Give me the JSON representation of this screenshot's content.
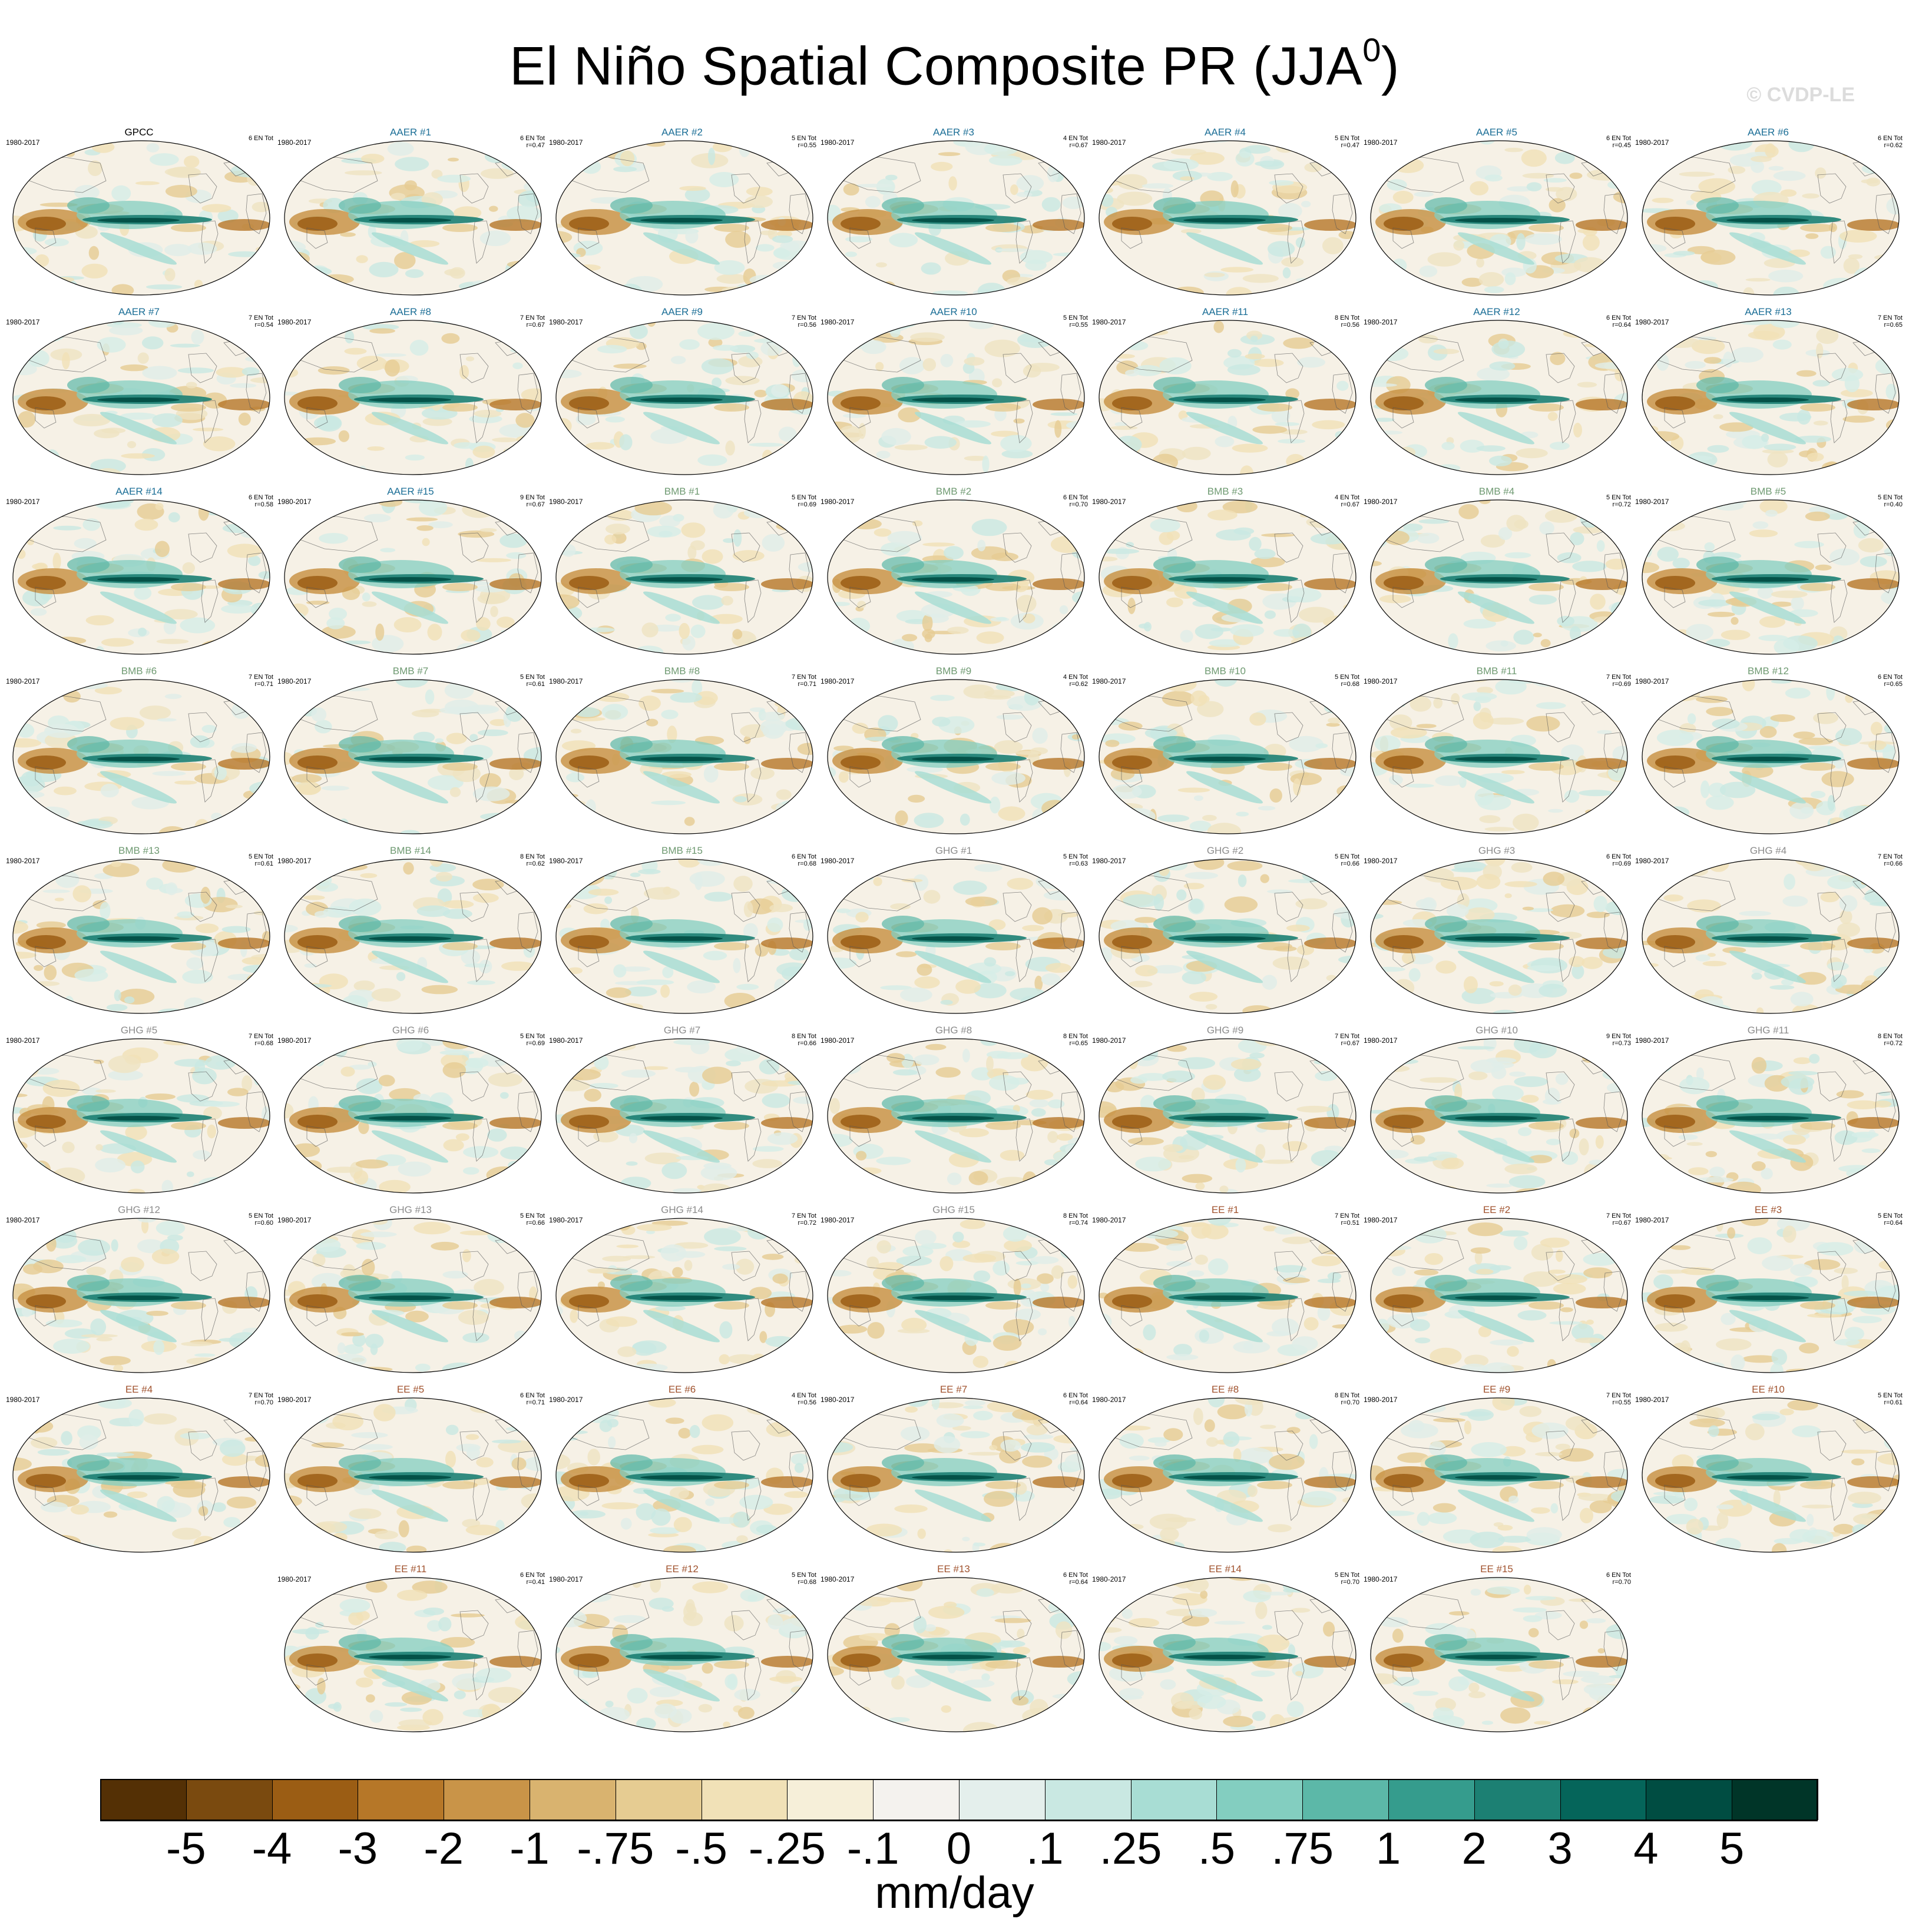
{
  "title": {
    "main": "El Niño Spatial Composite PR (JJA",
    "superscript": "0",
    "close": ")"
  },
  "copyright": "© CVDP-LE",
  "group_colors": {
    "GPCC": "#000000",
    "AAER": "#1b6e96",
    "BMB": "#6f9a72",
    "GHG": "#8c8c8c",
    "EE": "#a0522d"
  },
  "panels": [
    {
      "label": "GPCC",
      "group": "GPCC",
      "years": "1980-2017",
      "n_events": "6 EN Tot",
      "r": ""
    },
    {
      "label": "AAER #1",
      "group": "AAER",
      "years": "1980-2017",
      "n_events": "6 EN Tot",
      "r": "r=0.47"
    },
    {
      "label": "AAER #2",
      "group": "AAER",
      "years": "1980-2017",
      "n_events": "5 EN Tot",
      "r": "r=0.55"
    },
    {
      "label": "AAER #3",
      "group": "AAER",
      "years": "1980-2017",
      "n_events": "4 EN Tot",
      "r": "r=0.67"
    },
    {
      "label": "AAER #4",
      "group": "AAER",
      "years": "1980-2017",
      "n_events": "5 EN Tot",
      "r": "r=0.47"
    },
    {
      "label": "AAER #5",
      "group": "AAER",
      "years": "1980-2017",
      "n_events": "6 EN Tot",
      "r": "r=0.45"
    },
    {
      "label": "AAER #6",
      "group": "AAER",
      "years": "1980-2017",
      "n_events": "6 EN Tot",
      "r": "r=0.62"
    },
    {
      "label": "AAER #7",
      "group": "AAER",
      "years": "1980-2017",
      "n_events": "7 EN Tot",
      "r": "r=0.54"
    },
    {
      "label": "AAER #8",
      "group": "AAER",
      "years": "1980-2017",
      "n_events": "7 EN Tot",
      "r": "r=0.67"
    },
    {
      "label": "AAER #9",
      "group": "AAER",
      "years": "1980-2017",
      "n_events": "7 EN Tot",
      "r": "r=0.56"
    },
    {
      "label": "AAER #10",
      "group": "AAER",
      "years": "1980-2017",
      "n_events": "5 EN Tot",
      "r": "r=0.55"
    },
    {
      "label": "AAER #11",
      "group": "AAER",
      "years": "1980-2017",
      "n_events": "8 EN Tot",
      "r": "r=0.56"
    },
    {
      "label": "AAER #12",
      "group": "AAER",
      "years": "1980-2017",
      "n_events": "6 EN Tot",
      "r": "r=0.64"
    },
    {
      "label": "AAER #13",
      "group": "AAER",
      "years": "1980-2017",
      "n_events": "7 EN Tot",
      "r": "r=0.65"
    },
    {
      "label": "AAER #14",
      "group": "AAER",
      "years": "1980-2017",
      "n_events": "6 EN Tot",
      "r": "r=0.58"
    },
    {
      "label": "AAER #15",
      "group": "AAER",
      "years": "1980-2017",
      "n_events": "9 EN Tot",
      "r": "r=0.67"
    },
    {
      "label": "BMB #1",
      "group": "BMB",
      "years": "1980-2017",
      "n_events": "5 EN Tot",
      "r": "r=0.69"
    },
    {
      "label": "BMB #2",
      "group": "BMB",
      "years": "1980-2017",
      "n_events": "6 EN Tot",
      "r": "r=0.70"
    },
    {
      "label": "BMB #3",
      "group": "BMB",
      "years": "1980-2017",
      "n_events": "4 EN Tot",
      "r": "r=0.67"
    },
    {
      "label": "BMB #4",
      "group": "BMB",
      "years": "1980-2017",
      "n_events": "5 EN Tot",
      "r": "r=0.72"
    },
    {
      "label": "BMB #5",
      "group": "BMB",
      "years": "1980-2017",
      "n_events": "5 EN Tot",
      "r": "r=0.40"
    },
    {
      "label": "BMB #6",
      "group": "BMB",
      "years": "1980-2017",
      "n_events": "7 EN Tot",
      "r": "r=0.71"
    },
    {
      "label": "BMB #7",
      "group": "BMB",
      "years": "1980-2017",
      "n_events": "5 EN Tot",
      "r": "r=0.61"
    },
    {
      "label": "BMB #8",
      "group": "BMB",
      "years": "1980-2017",
      "n_events": "7 EN Tot",
      "r": "r=0.71"
    },
    {
      "label": "BMB #9",
      "group": "BMB",
      "years": "1980-2017",
      "n_events": "4 EN Tot",
      "r": "r=0.62"
    },
    {
      "label": "BMB #10",
      "group": "BMB",
      "years": "1980-2017",
      "n_events": "5 EN Tot",
      "r": "r=0.68"
    },
    {
      "label": "BMB #11",
      "group": "BMB",
      "years": "1980-2017",
      "n_events": "7 EN Tot",
      "r": "r=0.69"
    },
    {
      "label": "BMB #12",
      "group": "BMB",
      "years": "1980-2017",
      "n_events": "6 EN Tot",
      "r": "r=0.65"
    },
    {
      "label": "BMB #13",
      "group": "BMB",
      "years": "1980-2017",
      "n_events": "5 EN Tot",
      "r": "r=0.61"
    },
    {
      "label": "BMB #14",
      "group": "BMB",
      "years": "1980-2017",
      "n_events": "8 EN Tot",
      "r": "r=0.62"
    },
    {
      "label": "BMB #15",
      "group": "BMB",
      "years": "1980-2017",
      "n_events": "6 EN Tot",
      "r": "r=0.68"
    },
    {
      "label": "GHG #1",
      "group": "GHG",
      "years": "1980-2017",
      "n_events": "5 EN Tot",
      "r": "r=0.63"
    },
    {
      "label": "GHG #2",
      "group": "GHG",
      "years": "1980-2017",
      "n_events": "5 EN Tot",
      "r": "r=0.66"
    },
    {
      "label": "GHG #3",
      "group": "GHG",
      "years": "1980-2017",
      "n_events": "6 EN Tot",
      "r": "r=0.69"
    },
    {
      "label": "GHG #4",
      "group": "GHG",
      "years": "1980-2017",
      "n_events": "7 EN Tot",
      "r": "r=0.66"
    },
    {
      "label": "GHG #5",
      "group": "GHG",
      "years": "1980-2017",
      "n_events": "7 EN Tot",
      "r": "r=0.68"
    },
    {
      "label": "GHG #6",
      "group": "GHG",
      "years": "1980-2017",
      "n_events": "5 EN Tot",
      "r": "r=0.69"
    },
    {
      "label": "GHG #7",
      "group": "GHG",
      "years": "1980-2017",
      "n_events": "8 EN Tot",
      "r": "r=0.66"
    },
    {
      "label": "GHG #8",
      "group": "GHG",
      "years": "1980-2017",
      "n_events": "8 EN Tot",
      "r": "r=0.65"
    },
    {
      "label": "GHG #9",
      "group": "GHG",
      "years": "1980-2017",
      "n_events": "7 EN Tot",
      "r": "r=0.67"
    },
    {
      "label": "GHG #10",
      "group": "GHG",
      "years": "1980-2017",
      "n_events": "9 EN Tot",
      "r": "r=0.73"
    },
    {
      "label": "GHG #11",
      "group": "GHG",
      "years": "1980-2017",
      "n_events": "8 EN Tot",
      "r": "r=0.72"
    },
    {
      "label": "GHG #12",
      "group": "GHG",
      "years": "1980-2017",
      "n_events": "5 EN Tot",
      "r": "r=0.60"
    },
    {
      "label": "GHG #13",
      "group": "GHG",
      "years": "1980-2017",
      "n_events": "5 EN Tot",
      "r": "r=0.66"
    },
    {
      "label": "GHG #14",
      "group": "GHG",
      "years": "1980-2017",
      "n_events": "7 EN Tot",
      "r": "r=0.72"
    },
    {
      "label": "GHG #15",
      "group": "GHG",
      "years": "1980-2017",
      "n_events": "8 EN Tot",
      "r": "r=0.74"
    },
    {
      "label": "EE #1",
      "group": "EE",
      "years": "1980-2017",
      "n_events": "7 EN Tot",
      "r": "r=0.51"
    },
    {
      "label": "EE #2",
      "group": "EE",
      "years": "1980-2017",
      "n_events": "7 EN Tot",
      "r": "r=0.67"
    },
    {
      "label": "EE #3",
      "group": "EE",
      "years": "1980-2017",
      "n_events": "5 EN Tot",
      "r": "r=0.64"
    },
    {
      "label": "EE #4",
      "group": "EE",
      "years": "1980-2017",
      "n_events": "7 EN Tot",
      "r": "r=0.70"
    },
    {
      "label": "EE #5",
      "group": "EE",
      "years": "1980-2017",
      "n_events": "6 EN Tot",
      "r": "r=0.71"
    },
    {
      "label": "EE #6",
      "group": "EE",
      "years": "1980-2017",
      "n_events": "4 EN Tot",
      "r": "r=0.56"
    },
    {
      "label": "EE #7",
      "group": "EE",
      "years": "1980-2017",
      "n_events": "6 EN Tot",
      "r": "r=0.64"
    },
    {
      "label": "EE #8",
      "group": "EE",
      "years": "1980-2017",
      "n_events": "8 EN Tot",
      "r": "r=0.70"
    },
    {
      "label": "EE #9",
      "group": "EE",
      "years": "1980-2017",
      "n_events": "7 EN Tot",
      "r": "r=0.55"
    },
    {
      "label": "EE #10",
      "group": "EE",
      "years": "1980-2017",
      "n_events": "5 EN Tot",
      "r": "r=0.61"
    },
    {
      "label": "EE #11",
      "group": "EE",
      "years": "1980-2017",
      "n_events": "6 EN Tot",
      "r": "r=0.41"
    },
    {
      "label": "EE #12",
      "group": "EE",
      "years": "1980-2017",
      "n_events": "5 EN Tot",
      "r": "r=0.68"
    },
    {
      "label": "EE #13",
      "group": "EE",
      "years": "1980-2017",
      "n_events": "6 EN Tot",
      "r": "r=0.64"
    },
    {
      "label": "EE #14",
      "group": "EE",
      "years": "1980-2017",
      "n_events": "5 EN Tot",
      "r": "r=0.70"
    },
    {
      "label": "EE #15",
      "group": "EE",
      "years": "1980-2017",
      "n_events": "6 EN Tot",
      "r": "r=0.70"
    }
  ],
  "colorbar": {
    "units": "mm/day",
    "colors": [
      "#543005",
      "#7a4a0f",
      "#9b5d14",
      "#b67728",
      "#c99448",
      "#d9b36f",
      "#e6cc92",
      "#f1e1b7",
      "#f6efd9",
      "#f4f2ee",
      "#e4efec",
      "#c9e8e2",
      "#a8ddd4",
      "#83cec0",
      "#5cb8a8",
      "#359c8d",
      "#1c8073",
      "#05655a",
      "#004d42",
      "#003528"
    ],
    "ticks": [
      "-5",
      "-4",
      "-3",
      "-2",
      "-1",
      "-.75",
      "-.5",
      "-.25",
      "-.1",
      "0",
      ".1",
      ".25",
      ".5",
      ".75",
      "1",
      "2",
      "3",
      "4",
      "5"
    ]
  }
}
